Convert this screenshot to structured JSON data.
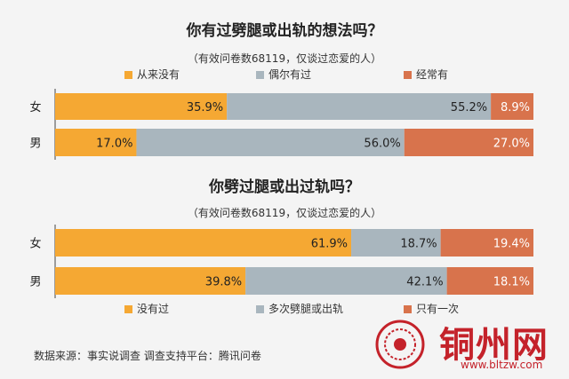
{
  "chart_data": [
    {
      "type": "bar",
      "stacked": true,
      "orientation": "horizontal",
      "title": "你有过劈腿或出轨的想法吗？",
      "subtitle": "（有效问卷数68119，仅谈过恋爱的人）",
      "categories": [
        "女",
        "男"
      ],
      "series": [
        {
          "name": "从来没有",
          "color": "#f5a833",
          "values": [
            35.9,
            17.0
          ]
        },
        {
          "name": "偶尔有过",
          "color": "#a9b6be",
          "values": [
            55.2,
            56.0
          ]
        },
        {
          "name": "经常有",
          "color": "#d8734c",
          "values": [
            8.9,
            27.0
          ]
        }
      ],
      "labels": [
        [
          "35.9%",
          "55.2%",
          "8.9%"
        ],
        [
          "17.0%",
          "56.0%",
          "27.0%"
        ]
      ],
      "xlim": [
        0,
        100
      ]
    },
    {
      "type": "bar",
      "stacked": true,
      "orientation": "horizontal",
      "title": "你劈过腿或出过轨吗？",
      "subtitle": "（有效问卷数68119，仅谈过恋爱的人）",
      "categories": [
        "女",
        "男"
      ],
      "series": [
        {
          "name": "没有过",
          "color": "#f5a833",
          "values": [
            61.9,
            39.8
          ]
        },
        {
          "name": "多次劈腿或出轨",
          "color": "#a9b6be",
          "values": [
            18.7,
            42.1
          ]
        },
        {
          "name": "只有一次",
          "color": "#d8734c",
          "values": [
            19.4,
            18.1
          ]
        }
      ],
      "labels": [
        [
          "61.9%",
          "18.7%",
          "19.4%"
        ],
        [
          "39.8%",
          "42.1%",
          "18.1%"
        ]
      ],
      "xlim": [
        0,
        100
      ]
    }
  ],
  "footer": "数据来源：事实说调查  调查支持平台：腾讯问卷",
  "watermark": {
    "name": "铜州网",
    "url": "www.bltzw.com",
    "color": "#c4222a"
  }
}
